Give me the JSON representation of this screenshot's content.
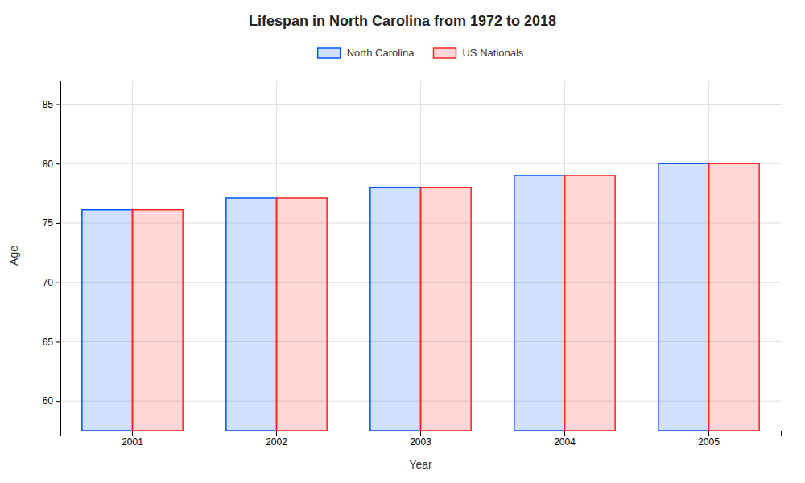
{
  "chart_data": {
    "type": "bar",
    "title": "Lifespan in North Carolina from 1972 to 2018",
    "xlabel": "Year",
    "ylabel": "Age",
    "categories": [
      "2001",
      "2002",
      "2003",
      "2004",
      "2005"
    ],
    "series": [
      {
        "name": "North Carolina",
        "color": "#0055ff",
        "values": [
          76.1,
          77.1,
          78.0,
          79.0,
          80.0
        ]
      },
      {
        "name": "US Nationals",
        "color": "#ff2222",
        "values": [
          76.1,
          77.1,
          78.0,
          79.0,
          80.0
        ]
      }
    ],
    "ylim": [
      57.5,
      87
    ],
    "yticks": [
      60,
      65,
      70,
      75,
      80,
      85
    ],
    "grid": true,
    "legend": "top"
  }
}
